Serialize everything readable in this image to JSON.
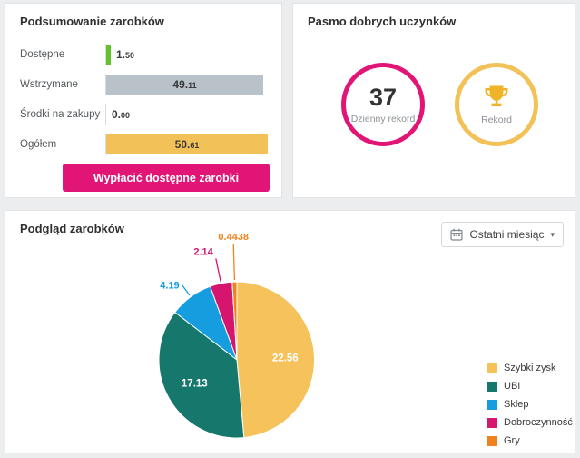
{
  "colors": {
    "accent_pink": "#e01575",
    "accent_yellow": "#f2c158",
    "bar_green": "#63c22e",
    "bar_gray": "#b9c1c9",
    "bar_yellow": "#f2c158",
    "trophy_gold": "#f0b429"
  },
  "summary": {
    "title": "Podsumowanie zarobków",
    "max": 50.61,
    "rows": [
      {
        "label": "Dostępne",
        "value": "1.50",
        "bar_color": "#63c22e"
      },
      {
        "label": "Wstrzymane",
        "value": "49.11",
        "bar_color": "#b9c1c9"
      },
      {
        "label": "Środki na zakupy",
        "value": "0.00",
        "bar_color": null
      },
      {
        "label": "Ogółem",
        "value": "50.61",
        "bar_color": "#f2c158"
      }
    ],
    "button_label": "Wypłacić dostępne zarobki"
  },
  "streak": {
    "title": "Pasmo dobrych uczynków",
    "daily": {
      "value": "37",
      "label": "Dzienny rekord",
      "ring_color": "#e01575"
    },
    "record": {
      "label": "Rekord",
      "icon": "trophy-icon",
      "ring_color": "#f2c158"
    }
  },
  "earnings": {
    "title": "Podgląd zarobków",
    "period_selector": {
      "label": "Ostatni miesiąc",
      "icon": "calendar-icon"
    }
  },
  "chart_data": {
    "type": "pie",
    "title": "Podgląd zarobków",
    "labels": [
      "Szybki zysk",
      "UBI",
      "Sklep",
      "Dobroczynność",
      "Gry"
    ],
    "values": [
      22.56,
      17.13,
      4.19,
      2.14,
      0.4438
    ],
    "value_labels": [
      "22.56",
      "17.13",
      "4.19",
      "2.14",
      "0.4438"
    ],
    "colors": [
      "#f6c25b",
      "#16776d",
      "#169de0",
      "#d5156e",
      "#f0821e"
    ],
    "legend_position": "right",
    "start_angle": "top",
    "direction": "clockwise"
  }
}
